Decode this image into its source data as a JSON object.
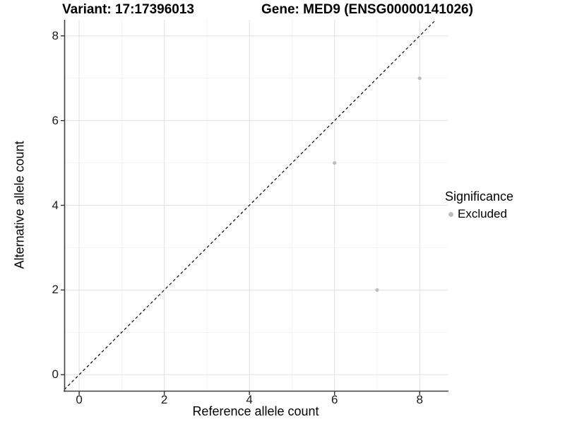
{
  "chart_data": {
    "type": "scatter",
    "title_left": "Variant: 17:17396013",
    "title_right": "Gene: MED9 (ENSG00000141026)",
    "xlabel": "Reference allele count",
    "ylabel": "Alternative allele count",
    "xlim": [
      -0.35,
      8.66
    ],
    "ylim": [
      -0.38,
      8.38
    ],
    "x_ticks": [
      0,
      2,
      4,
      6,
      8
    ],
    "y_ticks": [
      0,
      2,
      4,
      6,
      8
    ],
    "grid": true,
    "gridline_interval": 1,
    "series": [
      {
        "name": "Excluded",
        "marker": "circle",
        "color": "#bdbdbd",
        "points": [
          [
            6,
            5
          ],
          [
            7,
            2
          ],
          [
            8,
            7
          ]
        ]
      }
    ],
    "reference_line": {
      "kind": "identity",
      "style": "dashed",
      "color": "#000000"
    },
    "legend": {
      "title": "Significance",
      "position": "right",
      "entries": [
        {
          "label": "Excluded",
          "marker": "circle",
          "color": "#bdbdbd"
        }
      ]
    },
    "colors": {
      "background": "#ffffff",
      "grid_major": "#e4e4e4",
      "grid_minor": "#eeeeee",
      "axis_line": "#404040",
      "tick_mark": "#333333",
      "tick_text": "#1a1a1a",
      "title_text": "#000000"
    }
  }
}
